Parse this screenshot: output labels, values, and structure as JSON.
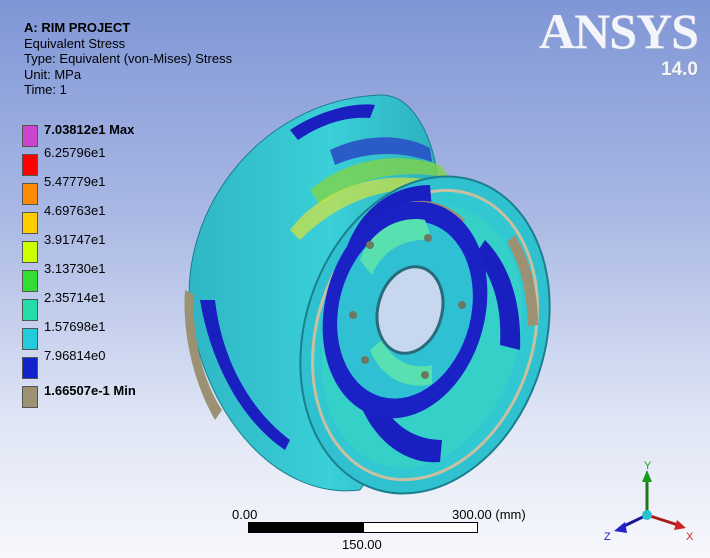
{
  "header": {
    "project": "A: RIM PROJECT",
    "result_name": "Equivalent Stress",
    "type": "Type: Equivalent (von-Mises) Stress",
    "unit": "Unit: MPa",
    "time": "Time: 1"
  },
  "logo": {
    "brand": "ANSYS",
    "version": "14.0"
  },
  "legend": {
    "items": [
      {
        "label": "7.03812e1 Max",
        "color": "#cc44cc",
        "bold": true
      },
      {
        "label": "6.25796e1",
        "color": "#ff0000",
        "bold": false
      },
      {
        "label": "5.47779e1",
        "color": "#ff8c00",
        "bold": false
      },
      {
        "label": "4.69763e1",
        "color": "#ffcc00",
        "bold": false
      },
      {
        "label": "3.91747e1",
        "color": "#ccff00",
        "bold": false
      },
      {
        "label": "3.13730e1",
        "color": "#33dd33",
        "bold": false
      },
      {
        "label": "2.35714e1",
        "color": "#22ddaa",
        "bold": false
      },
      {
        "label": "1.57698e1",
        "color": "#22ccdd",
        "bold": false
      },
      {
        "label": "7.96814e0",
        "color": "#1122cc",
        "bold": false
      },
      {
        "label": "1.66507e-1 Min",
        "color": "#9c9273",
        "bold": true
      }
    ]
  },
  "scale_bar": {
    "start": "0.00",
    "end": "300.00 (mm)",
    "mid": "150.00"
  },
  "triad": {
    "y": "Y",
    "x": "X",
    "z": "Z"
  }
}
